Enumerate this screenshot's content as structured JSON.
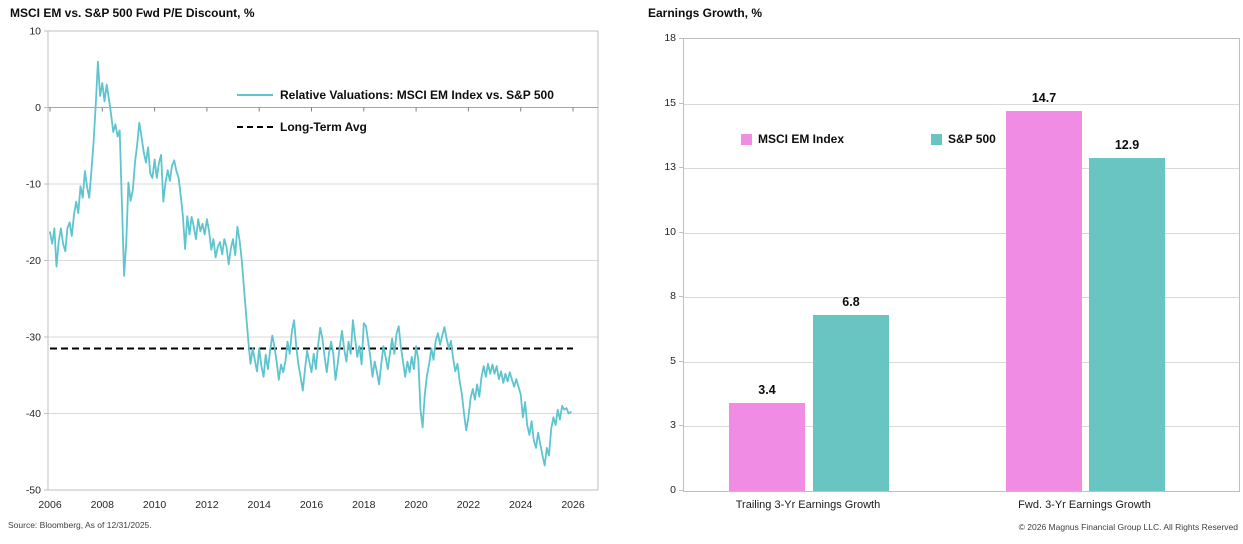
{
  "chart_data": [
    {
      "type": "line",
      "title": "MSCI EM vs. S&P 500 Fwd P/E Discount, %",
      "source_note": "Source: Bloomberg, As of 12/31/2025.",
      "ylim": [
        -50,
        10
      ],
      "ytick_labels_top_to_bottom": [
        "10",
        "0",
        "-10",
        "-20",
        "-30",
        "-40",
        "-50"
      ],
      "xticks": [
        2006,
        2008,
        2010,
        2012,
        2014,
        2016,
        2018,
        2020,
        2022,
        2024,
        2026
      ],
      "grid": true,
      "legend_position": "upper-right-inside",
      "series": [
        {
          "name": "Relative Valuations: MSCI EM Index vs. S&P 500",
          "color": "#5ec5ce",
          "x_start_year": 2006.0,
          "x_step_years": 0.08333,
          "values": [
            -16.3,
            -17.8,
            -15.8,
            -20.8,
            -17.5,
            -15.8,
            -17.8,
            -18.8,
            -15.8,
            -15.0,
            -16.8,
            -14.0,
            -12.3,
            -13.8,
            -10.3,
            -11.8,
            -8.3,
            -10.3,
            -11.8,
            -8.3,
            -4.5,
            0.5,
            6.0,
            1.5,
            3.2,
            0.8,
            3.0,
            1.2,
            -0.8,
            -3.2,
            -2.2,
            -3.8,
            -3.0,
            -12.5,
            -22.0,
            -17.5,
            -9.8,
            -12.2,
            -10.8,
            -7.2,
            -4.8,
            -2.0,
            -3.8,
            -5.8,
            -7.2,
            -5.2,
            -8.6,
            -9.2,
            -6.8,
            -9.2,
            -7.2,
            -6.2,
            -12.3,
            -9.8,
            -8.2,
            -9.6,
            -7.6,
            -6.9,
            -8.3,
            -9.2,
            -11.6,
            -14.2,
            -18.5,
            -14.2,
            -16.6,
            -14.3,
            -15.6,
            -17.2,
            -14.6,
            -16.2,
            -15.2,
            -16.6,
            -14.6,
            -16.2,
            -18.6,
            -17.2,
            -19.6,
            -18.2,
            -17.6,
            -19.2,
            -17.2,
            -18.2,
            -20.5,
            -18.4,
            -17.2,
            -19.3,
            -15.6,
            -17.4,
            -20.0,
            -23.5,
            -27.0,
            -30.5,
            -33.5,
            -31.5,
            -33.0,
            -34.5,
            -31.5,
            -33.8,
            -35.2,
            -32.3,
            -34.2,
            -31.8,
            -29.8,
            -31.3,
            -33.2,
            -35.6,
            -33.6,
            -34.6,
            -33.2,
            -30.6,
            -32.2,
            -29.2,
            -27.8,
            -31.2,
            -33.6,
            -35.2,
            -37.0,
            -34.2,
            -31.8,
            -33.2,
            -34.6,
            -32.2,
            -34.2,
            -31.2,
            -28.8,
            -30.2,
            -32.6,
            -34.6,
            -32.2,
            -30.6,
            -32.2,
            -35.6,
            -33.6,
            -31.2,
            -29.2,
            -31.6,
            -33.2,
            -30.6,
            -32.2,
            -27.8,
            -30.2,
            -32.6,
            -31.2,
            -33.6,
            -28.2,
            -28.6,
            -30.6,
            -32.6,
            -35.2,
            -33.2,
            -34.6,
            -36.2,
            -33.6,
            -31.2,
            -32.6,
            -34.2,
            -32.2,
            -30.2,
            -32.2,
            -29.6,
            -28.6,
            -31.2,
            -33.2,
            -35.2,
            -33.2,
            -34.6,
            -32.6,
            -34.2,
            -31.2,
            -33.0,
            -39.5,
            -41.8,
            -37.5,
            -35.0,
            -33.5,
            -31.5,
            -33.0,
            -30.5,
            -29.5,
            -31.0,
            -29.8,
            -28.7,
            -30.2,
            -31.5,
            -30.5,
            -32.8,
            -34.5,
            -33.5,
            -35.8,
            -37.5,
            -40.0,
            -42.2,
            -40.5,
            -38.0,
            -36.8,
            -38.2,
            -36.2,
            -37.8,
            -35.2,
            -33.8,
            -35.2,
            -33.5,
            -34.8,
            -33.6,
            -34.8,
            -33.8,
            -35.5,
            -34.5,
            -36.0,
            -34.8,
            -35.8,
            -34.6,
            -35.6,
            -36.5,
            -35.5,
            -36.5,
            -37.5,
            -40.5,
            -38.5,
            -41.5,
            -42.8,
            -41.0,
            -43.5,
            -44.5,
            -42.5,
            -44.0,
            -45.5,
            -46.8,
            -44.5,
            -45.5,
            -42.0,
            -40.5,
            -41.5,
            -39.5,
            -40.8,
            -39.0,
            -39.5,
            -39.3,
            -40.0,
            -39.8
          ]
        },
        {
          "name": "Long-Term Avg",
          "color": "#000000",
          "style": "dashed",
          "value": -31.5
        }
      ]
    },
    {
      "type": "bar",
      "title": "Earnings Growth, %",
      "footer": "© 2026 Magnus Financial Group LLC. All Rights Reserved",
      "categories": [
        "Trailing 3-Yr Earnings Growth",
        "Fwd. 3-Yr Earnings Growth"
      ],
      "series": [
        {
          "name": "MSCI EM Index",
          "color": "#f08ce3",
          "values": [
            3.4,
            14.7
          ]
        },
        {
          "name": "S&P 500",
          "color": "#68c5c2",
          "values": [
            6.8,
            12.9
          ]
        }
      ],
      "data_labels": [
        [
          "3.4",
          "14.7"
        ],
        [
          "6.8",
          "12.9"
        ]
      ],
      "ylim": [
        0,
        17.5
      ],
      "ytick_labels_top_to_bottom": [
        "18",
        "15",
        "13",
        "10",
        "8",
        "5",
        "3",
        "0"
      ],
      "grid": true,
      "legend_position": "upper-left-inside"
    }
  ]
}
